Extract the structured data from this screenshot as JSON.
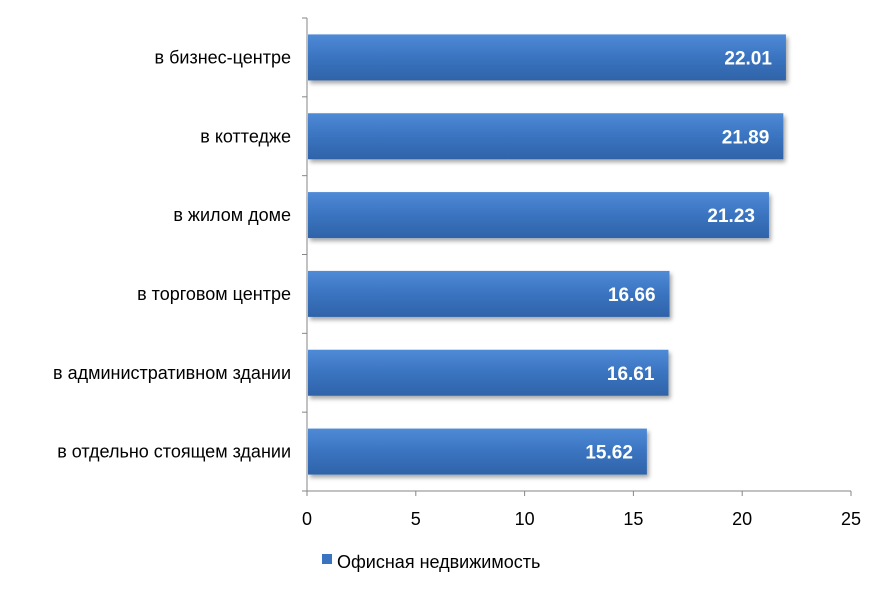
{
  "chart_data": {
    "type": "bar",
    "orientation": "horizontal",
    "categories": [
      "в бизнес-центре",
      "в коттедже",
      "в жилом доме",
      "в торговом центре",
      "в административном здании",
      "в отдельно стоящем здании"
    ],
    "series": [
      {
        "name": "Офисная недвижимость",
        "values": [
          22.01,
          21.89,
          21.23,
          16.66,
          16.61,
          15.62
        ],
        "color": "#3A74C0"
      }
    ],
    "data_labels": [
      "22.01",
      "21.89",
      "21.23",
      "16.66",
      "16.61",
      "15.62"
    ],
    "xlim": [
      0,
      25
    ],
    "xticks": [
      0,
      5,
      10,
      15,
      20,
      25
    ],
    "xtick_labels": [
      "0",
      "5",
      "10",
      "15",
      "20",
      "25"
    ],
    "grid": false,
    "legend_position": "bottom",
    "title": "",
    "xlabel": "",
    "ylabel": ""
  }
}
